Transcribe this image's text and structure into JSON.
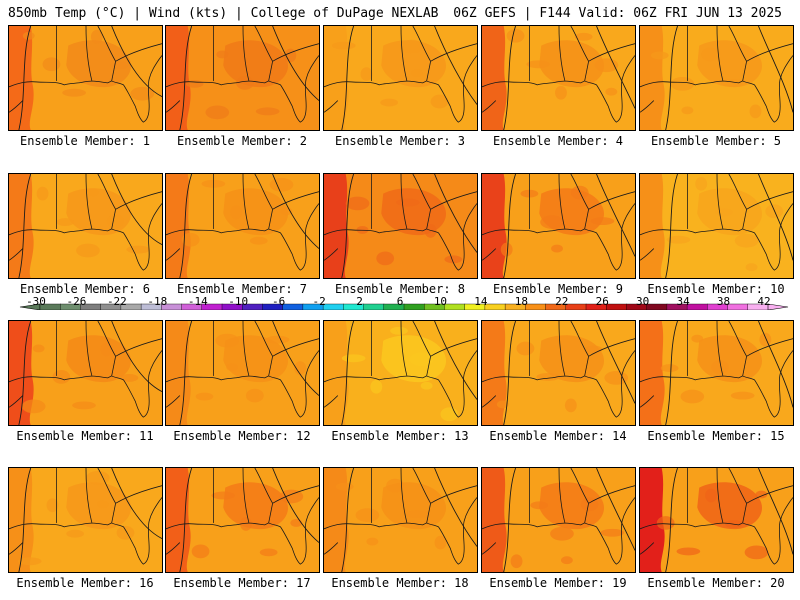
{
  "header": {
    "left": "850mb Temp (°C) | Wind (kts) | College of DuPage NEXLAB",
    "right": "06Z GEFS | F144 Valid: 06Z FRI JUN 13 2025"
  },
  "panels": [
    {
      "label": "Ensemble Member: 1",
      "west_color": "#f46a18",
      "base_color": "#f8a01a",
      "warm_blob": "#f28a1a"
    },
    {
      "label": "Ensemble Member: 2",
      "west_color": "#f25f18",
      "base_color": "#f69018",
      "warm_blob": "#f07a18"
    },
    {
      "label": "Ensemble Member: 3",
      "west_color": "#f8a01a",
      "base_color": "#f9a81c",
      "warm_blob": "#f7981a"
    },
    {
      "label": "Ensemble Member: 4",
      "west_color": "#f06418",
      "base_color": "#f9a81c",
      "warm_blob": "#f69018"
    },
    {
      "label": "Ensemble Member: 5",
      "west_color": "#f69018",
      "base_color": "#f9ab1c",
      "warm_blob": "#f7981a"
    },
    {
      "label": "Ensemble Member: 6",
      "west_color": "#f47a18",
      "base_color": "#f9a81c",
      "warm_blob": "#f7981a"
    },
    {
      "label": "Ensemble Member: 7",
      "west_color": "#f47a18",
      "base_color": "#f8a01a",
      "warm_blob": "#f69018"
    },
    {
      "label": "Ensemble Member: 8",
      "west_color": "#e8401a",
      "base_color": "#f58a18",
      "warm_blob": "#f06a18"
    },
    {
      "label": "Ensemble Member: 9",
      "west_color": "#e9421a",
      "base_color": "#f8a01a",
      "warm_blob": "#f47a18"
    },
    {
      "label": "Ensemble Member: 10",
      "west_color": "#f69018",
      "base_color": "#f9b21e",
      "warm_blob": "#f8a41c"
    },
    {
      "label": "Ensemble Member: 11",
      "west_color": "#ef4e1a",
      "base_color": "#f8a01a",
      "warm_blob": "#f58a18"
    },
    {
      "label": "Ensemble Member: 12",
      "west_color": "#f58a18",
      "base_color": "#f8a01a",
      "warm_blob": "#f69018"
    },
    {
      "label": "Ensemble Member: 13",
      "west_color": "#f8a01a",
      "base_color": "#f9b01c",
      "warm_blob": "#fbc81e"
    },
    {
      "label": "Ensemble Member: 14",
      "west_color": "#f47a18",
      "base_color": "#f9a81c",
      "warm_blob": "#f69018"
    },
    {
      "label": "Ensemble Member: 15",
      "west_color": "#f47018",
      "base_color": "#f9a81c",
      "warm_blob": "#f69018"
    },
    {
      "label": "Ensemble Member: 16",
      "west_color": "#f69018",
      "base_color": "#f9a81c",
      "warm_blob": "#f7981a"
    },
    {
      "label": "Ensemble Member: 17",
      "west_color": "#f25f18",
      "base_color": "#f8a01a",
      "warm_blob": "#f47a18"
    },
    {
      "label": "Ensemble Member: 18",
      "west_color": "#f58a18",
      "base_color": "#f8a01a",
      "warm_blob": "#f69018"
    },
    {
      "label": "Ensemble Member: 19",
      "west_color": "#ef5a18",
      "base_color": "#f8a01a",
      "warm_blob": "#f47a18"
    },
    {
      "label": "Ensemble Member: 20",
      "west_color": "#e2201a",
      "base_color": "#f8a01a",
      "warm_blob": "#f06418"
    }
  ],
  "colorbar": {
    "labels": [
      "-30",
      "-26",
      "-22",
      "-18",
      "-14",
      "-10",
      "-6",
      "-2",
      "2",
      "6",
      "10",
      "14",
      "18",
      "22",
      "26",
      "30",
      "34",
      "38",
      "42"
    ],
    "colors": [
      "#5a7a5a",
      "#6e8e6e",
      "#7e7e7e",
      "#8f8f8f",
      "#a9a9a9",
      "#bdbdd6",
      "#c890d8",
      "#d060d8",
      "#c020d0",
      "#9010c8",
      "#5020c0",
      "#2020c0",
      "#1060e0",
      "#10a0f0",
      "#20d0f0",
      "#20e8d0",
      "#20d090",
      "#20b050",
      "#30a020",
      "#70c020",
      "#b0e020",
      "#f0f020",
      "#f8d020",
      "#f8b020",
      "#f89018",
      "#f06818",
      "#e84018",
      "#e02018",
      "#c01010",
      "#a00818",
      "#800820",
      "#a01060",
      "#c010a0",
      "#e040d0",
      "#f070e0",
      "#f8b0f0"
    ]
  }
}
